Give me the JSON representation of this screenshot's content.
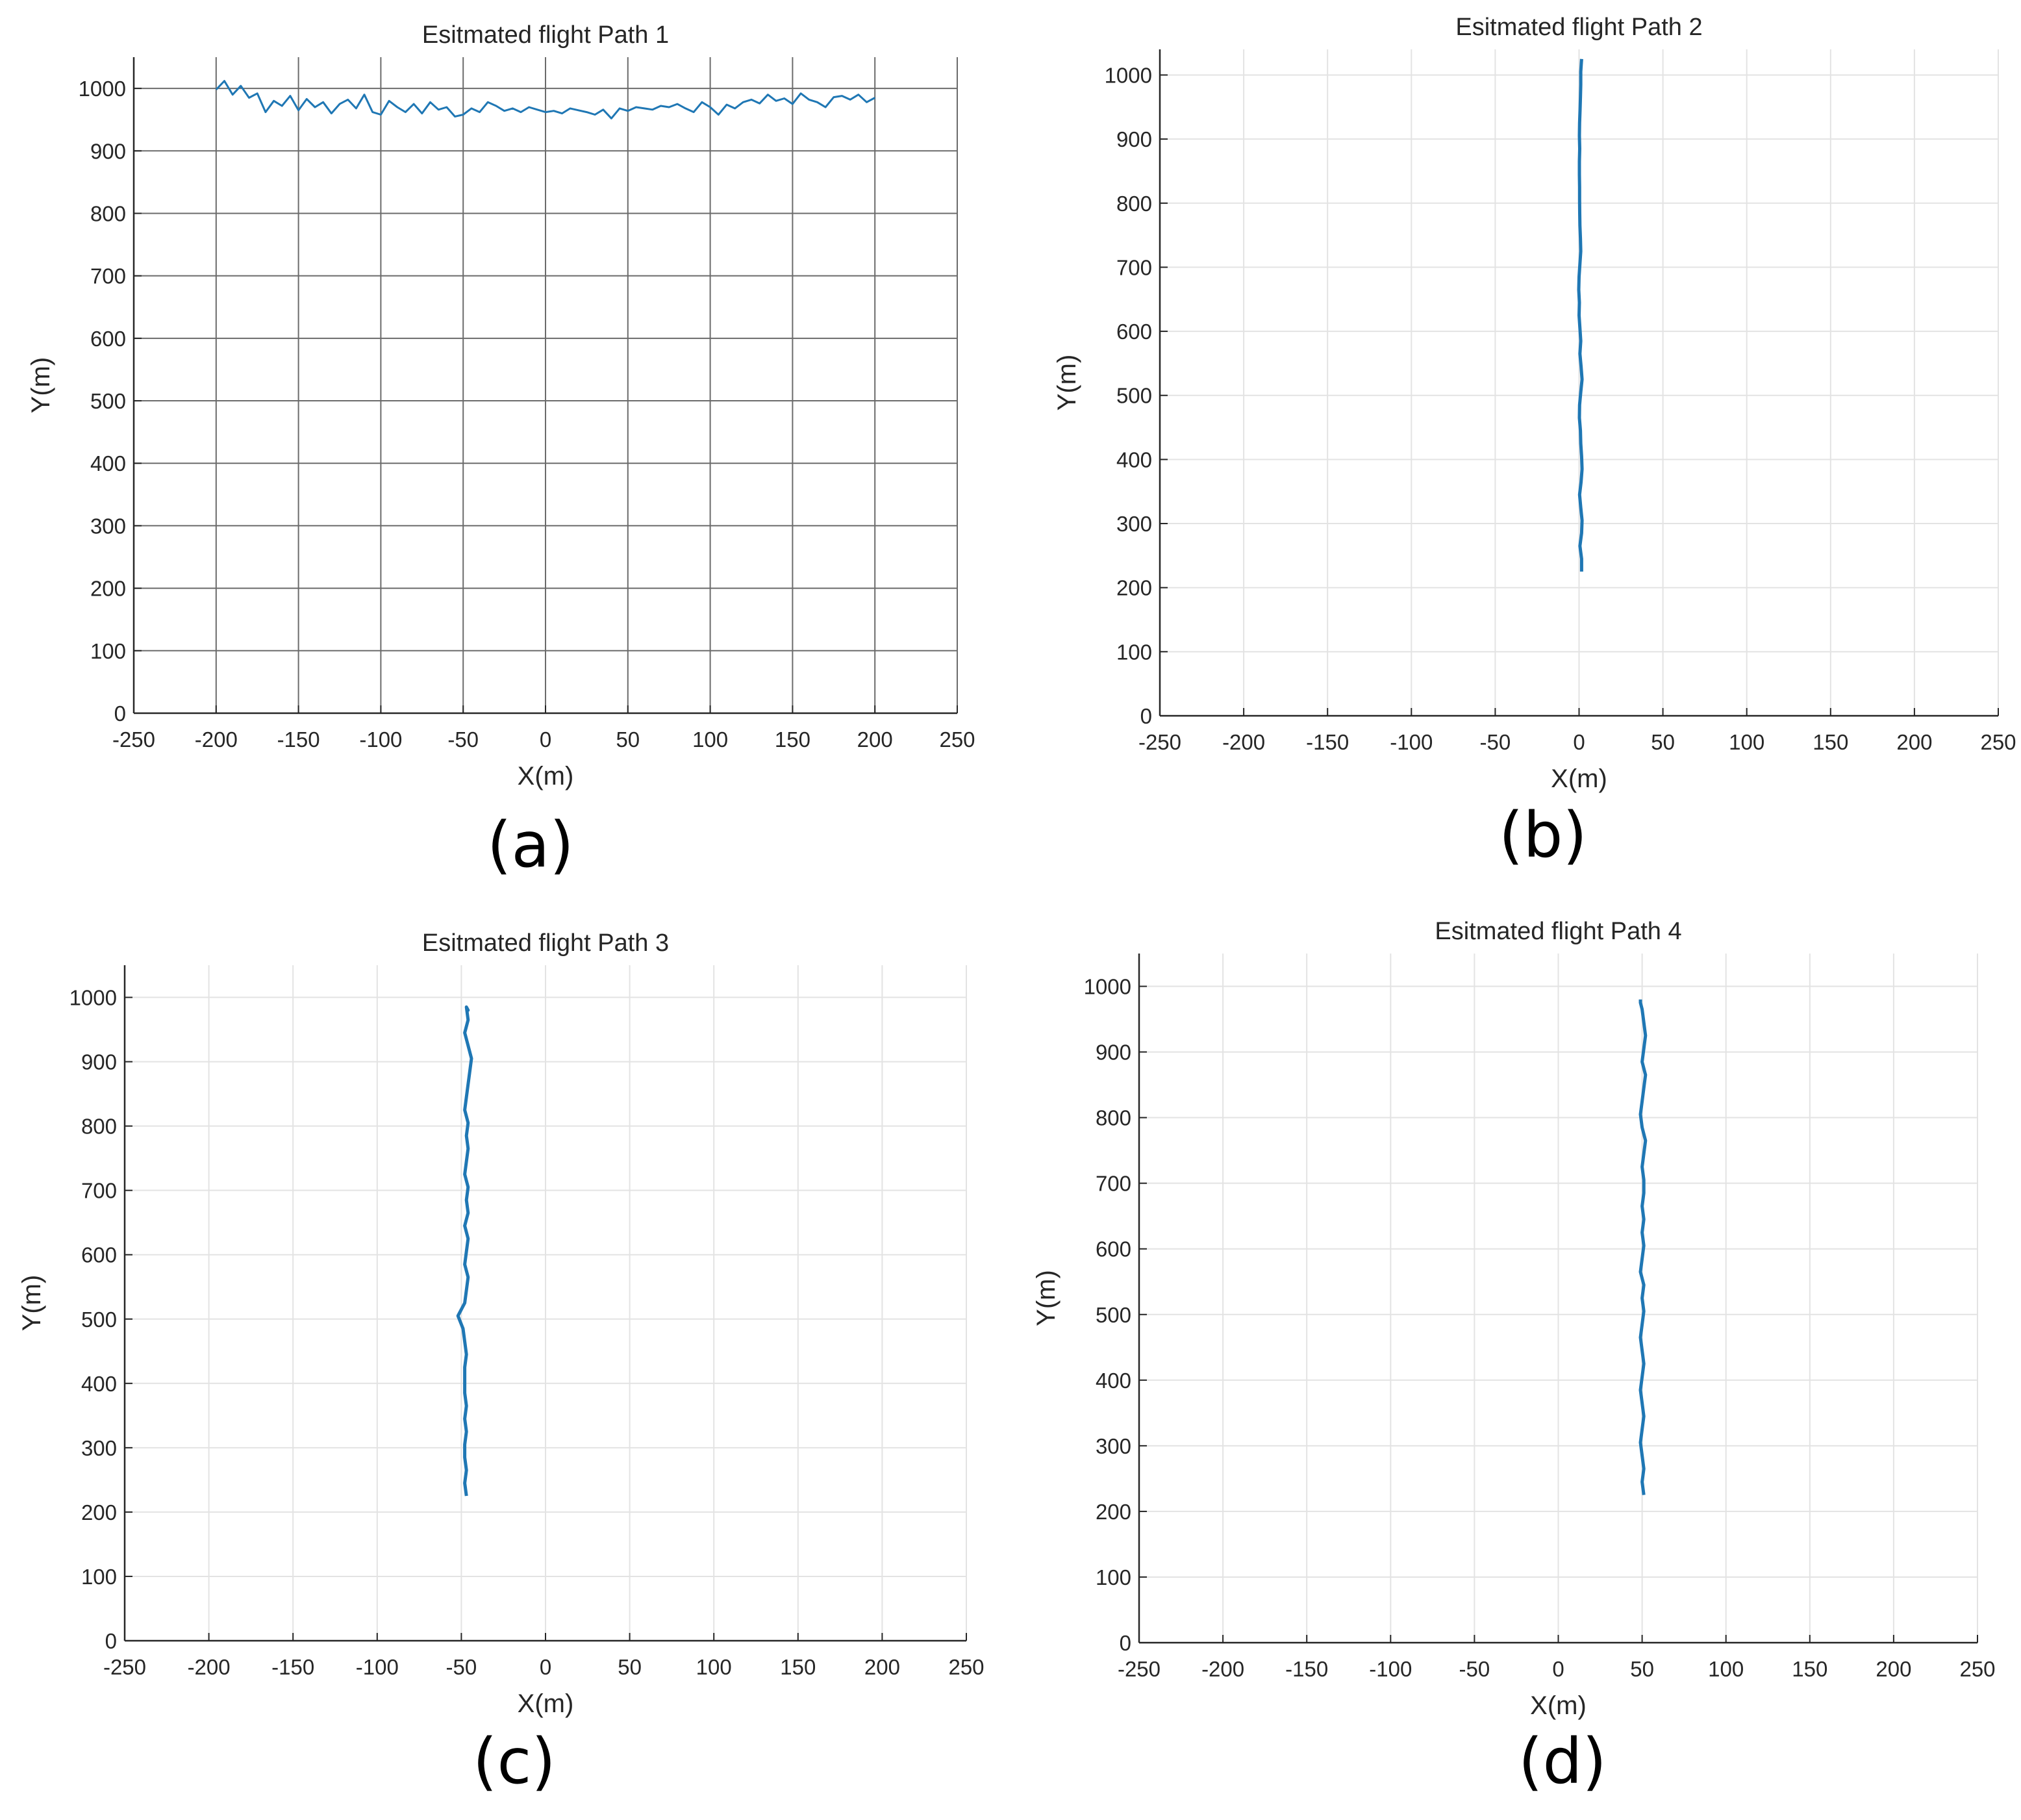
{
  "chart_data": [
    {
      "type": "line",
      "title": "Esitmated flight Path 1",
      "xlabel": "X(m)",
      "ylabel": "Y(m)",
      "xlim": [
        -250,
        250
      ],
      "ylim": [
        0,
        1050
      ],
      "xticks": [
        -250,
        -200,
        -150,
        -100,
        -50,
        0,
        50,
        100,
        150,
        200,
        250
      ],
      "yticks": [
        0,
        100,
        200,
        300,
        400,
        500,
        600,
        700,
        800,
        900,
        1000
      ],
      "grid": "dark",
      "panel_label": "(a)",
      "series": [
        {
          "name": "Esitmated flight Path 1",
          "color": "#1f77b4",
          "x": [
            -200,
            -195,
            -190,
            -185,
            -180,
            -175,
            -170,
            -165,
            -160,
            -155,
            -150,
            -145,
            -140,
            -135,
            -130,
            -125,
            -120,
            -115,
            -110,
            -105,
            -100,
            -95,
            -90,
            -85,
            -80,
            -75,
            -70,
            -65,
            -60,
            -55,
            -50,
            -45,
            -40,
            -35,
            -30,
            -25,
            -20,
            -15,
            -10,
            -5,
            0,
            5,
            10,
            15,
            20,
            25,
            30,
            35,
            40,
            45,
            50,
            55,
            60,
            65,
            70,
            75,
            80,
            85,
            90,
            95,
            100,
            105,
            110,
            115,
            120,
            125,
            130,
            135,
            140,
            145,
            150,
            155,
            160,
            165,
            170,
            175,
            180,
            185,
            190,
            195,
            200
          ],
          "y": [
            998,
            1012,
            990,
            1004,
            985,
            992,
            962,
            980,
            972,
            988,
            965,
            983,
            970,
            978,
            960,
            975,
            982,
            968,
            990,
            962,
            958,
            980,
            970,
            962,
            975,
            960,
            978,
            966,
            970,
            955,
            958,
            968,
            962,
            978,
            972,
            964,
            968,
            962,
            970,
            966,
            962,
            964,
            960,
            968,
            965,
            962,
            958,
            966,
            952,
            968,
            964,
            970,
            968,
            966,
            972,
            970,
            975,
            968,
            962,
            978,
            970,
            958,
            974,
            968,
            978,
            982,
            976,
            990,
            980,
            984,
            975,
            992,
            982,
            978,
            970,
            986,
            988,
            982,
            990,
            978,
            985
          ]
        }
      ]
    },
    {
      "type": "line",
      "title": "Esitmated flight Path 2",
      "xlabel": "X(m)",
      "ylabel": "Y(m)",
      "xlim": [
        -250,
        250
      ],
      "ylim": [
        0,
        1040
      ],
      "xticks": [
        -250,
        -200,
        -150,
        -100,
        -50,
        0,
        50,
        100,
        150,
        200,
        250
      ],
      "yticks": [
        0,
        100,
        200,
        300,
        400,
        500,
        600,
        700,
        800,
        900,
        1000
      ],
      "grid": "light",
      "panel_label": "(b)",
      "series": [
        {
          "name": "Esitmated flight Path 2",
          "color": "#1f77b4",
          "x": [
            1.5,
            1.5,
            0.5,
            1.5,
            1.8,
            1.0,
            0.3,
            1.2,
            1.8,
            1.5,
            1.0,
            0.8,
            0.2,
            0.3,
            1.0,
            1.8,
            1.2,
            0.5,
            1.0,
            0.5,
            0.0,
            0.2,
            -0.2,
            0.0,
            0.5,
            1.0,
            0.8,
            0.5,
            0.4,
            0.3,
            0.3,
            0.2,
            0.2,
            0.4,
            0.2,
            0.3,
            0.6,
            0.8,
            1.0,
            1.0,
            1.5
          ],
          "y": [
            225,
            245,
            265,
            285,
            305,
            325,
            345,
            365,
            385,
            405,
            425,
            445,
            465,
            485,
            505,
            525,
            545,
            565,
            585,
            605,
            625,
            645,
            665,
            685,
            705,
            725,
            745,
            765,
            785,
            805,
            825,
            845,
            865,
            885,
            905,
            925,
            945,
            965,
            985,
            1005,
            1025
          ]
        }
      ]
    },
    {
      "type": "line",
      "title": "Esitmated flight Path 3",
      "xlabel": "X(m)",
      "ylabel": "Y(m)",
      "xlim": [
        -250,
        250
      ],
      "ylim": [
        0,
        1050
      ],
      "xticks": [
        -250,
        -200,
        -150,
        -100,
        -50,
        0,
        50,
        100,
        150,
        200,
        250
      ],
      "yticks": [
        0,
        100,
        200,
        300,
        400,
        500,
        600,
        700,
        800,
        900,
        1000
      ],
      "grid": "light",
      "panel_label": "(c)",
      "series": [
        {
          "name": "Esitmated flight Path 3",
          "color": "#1f77b4",
          "x": [
            -47,
            -48,
            -47,
            -48,
            -48,
            -47,
            -48,
            -47,
            -48,
            -48,
            -48,
            -47,
            -48,
            -49,
            -52,
            -48,
            -47,
            -46,
            -48,
            -47,
            -46,
            -48,
            -46,
            -47,
            -46,
            -48,
            -47,
            -46,
            -47,
            -46,
            -48,
            -47,
            -46,
            -45,
            -44,
            -46,
            -48,
            -46,
            -47,
            -46,
            -47
          ],
          "y": [
            225,
            245,
            265,
            285,
            305,
            325,
            345,
            365,
            385,
            405,
            425,
            445,
            465,
            485,
            505,
            525,
            545,
            565,
            585,
            605,
            625,
            645,
            665,
            685,
            705,
            725,
            745,
            765,
            785,
            805,
            825,
            845,
            865,
            885,
            905,
            925,
            945,
            965,
            985,
            980,
            985
          ]
        }
      ]
    },
    {
      "type": "line",
      "title": "Esitmated flight Path 4",
      "xlabel": "X(m)",
      "ylabel": "Y(m)",
      "xlim": [
        -250,
        250
      ],
      "ylim": [
        0,
        1050
      ],
      "xticks": [
        -250,
        -200,
        -150,
        -100,
        -50,
        0,
        50,
        100,
        150,
        200,
        250
      ],
      "yticks": [
        0,
        100,
        200,
        300,
        400,
        500,
        600,
        700,
        800,
        900,
        1000
      ],
      "grid": "light",
      "panel_label": "(d)",
      "series": [
        {
          "name": "Esitmated flight Path 4",
          "color": "#1f77b4",
          "x": [
            51,
            50,
            51,
            50,
            49,
            50,
            51,
            50,
            49,
            50,
            51,
            50,
            49,
            50,
            51,
            50,
            51,
            49,
            50,
            51,
            50,
            51,
            50,
            51,
            51,
            50,
            51,
            52,
            50,
            49,
            50,
            51,
            52,
            50,
            51,
            52,
            51,
            50,
            49,
            49
          ],
          "y": [
            225,
            245,
            265,
            285,
            305,
            325,
            345,
            365,
            385,
            405,
            425,
            445,
            465,
            485,
            505,
            525,
            545,
            565,
            585,
            605,
            625,
            645,
            665,
            685,
            705,
            725,
            745,
            765,
            785,
            805,
            825,
            845,
            865,
            885,
            905,
            925,
            945,
            965,
            975,
            980
          ]
        }
      ]
    }
  ]
}
